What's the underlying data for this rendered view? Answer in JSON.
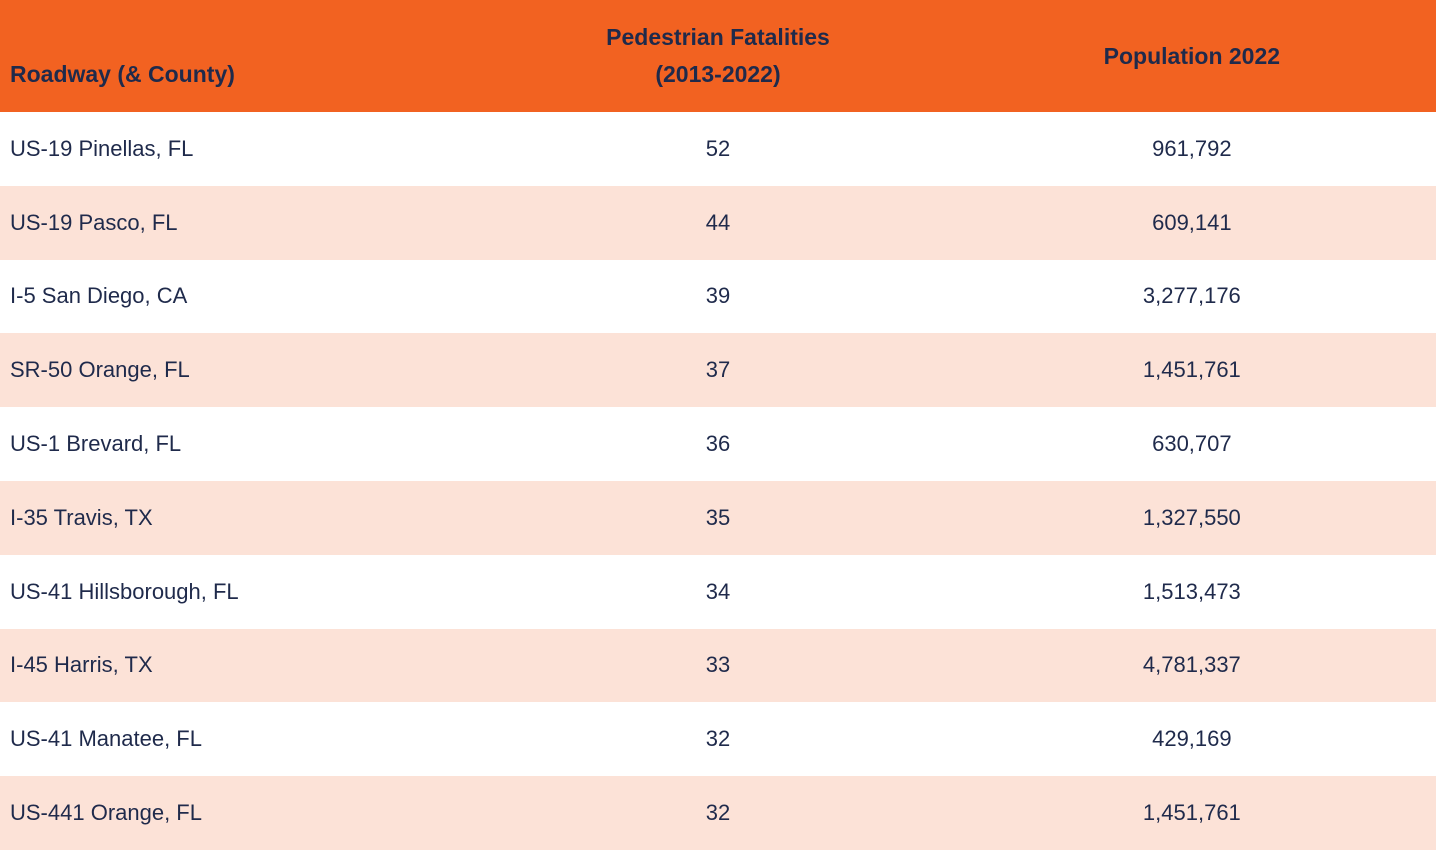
{
  "header": {
    "roadway": "Roadway (& County)",
    "fatalities_line1": "Pedestrian Fatalities",
    "fatalities_line2": "(2013-2022)",
    "population": "Population 2022"
  },
  "chart_data": {
    "type": "table",
    "columns": [
      "Roadway (& County)",
      "Pedestrian Fatalities (2013-2022)",
      "Population 2022"
    ],
    "rows": [
      {
        "roadway": "US-19 Pinellas, FL",
        "fatalities": 52,
        "population": "961,792"
      },
      {
        "roadway": "US-19 Pasco, FL",
        "fatalities": 44,
        "population": "609,141"
      },
      {
        "roadway": "I-5 San Diego, CA",
        "fatalities": 39,
        "population": "3,277,176"
      },
      {
        "roadway": "SR-50 Orange, FL",
        "fatalities": 37,
        "population": "1,451,761"
      },
      {
        "roadway": "US-1 Brevard, FL",
        "fatalities": 36,
        "population": "630,707"
      },
      {
        "roadway": "I-35 Travis, TX",
        "fatalities": 35,
        "population": "1,327,550"
      },
      {
        "roadway": "US-41 Hillsborough, FL",
        "fatalities": 34,
        "population": "1,513,473"
      },
      {
        "roadway": "I-45 Harris, TX",
        "fatalities": 33,
        "population": "4,781,337"
      },
      {
        "roadway": "US-41 Manatee, FL",
        "fatalities": 32,
        "population": "429,169"
      },
      {
        "roadway": "US-441 Orange, FL",
        "fatalities": 32,
        "population": "1,451,761"
      }
    ]
  },
  "colors": {
    "header_bg": "#F26221",
    "row_alt_bg": "#FCE2D7",
    "row_bg": "#FFFFFF",
    "text": "#1F2A4B"
  }
}
